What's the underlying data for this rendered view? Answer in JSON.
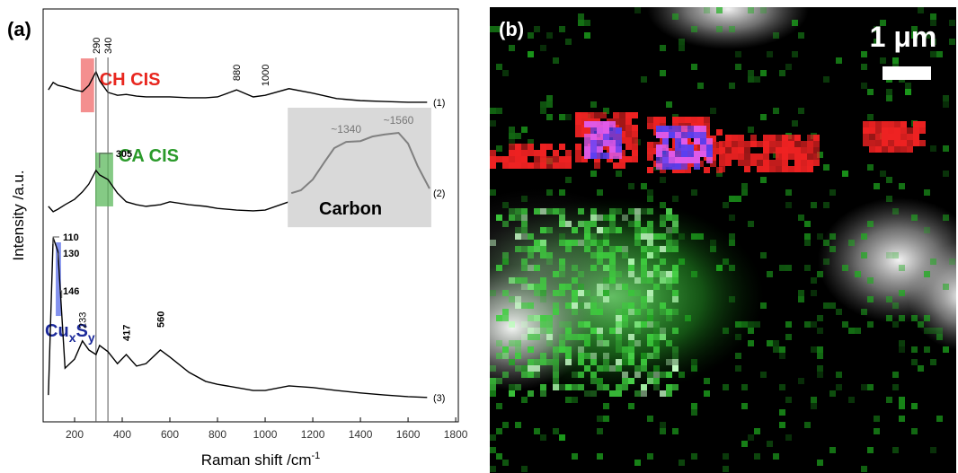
{
  "chart_data": {
    "type": "line",
    "panel_label": "(a)",
    "xlabel": [
      "Raman shift /cm",
      "-1"
    ],
    "ylabel": "Intensity /a.u.",
    "xlim": [
      68,
      1811
    ],
    "ylim": [
      0,
      100
    ],
    "xticks": [
      200,
      400,
      600,
      800,
      1000,
      1200,
      1400,
      1600,
      1800
    ],
    "x": [
      90,
      110,
      130,
      160,
      200,
      233,
      260,
      290,
      305,
      340,
      380,
      417,
      460,
      500,
      560,
      600,
      680,
      750,
      800,
      880,
      950,
      1000,
      1100,
      1200,
      1300,
      1400,
      1500,
      1600,
      1680
    ],
    "series": [
      {
        "name": "(1)",
        "color": "#000000",
        "values": [
          80.4,
          82.2,
          81.5,
          81.1,
          80.4,
          80.0,
          81.5,
          84.8,
          82.6,
          79.8,
          79.1,
          79.3,
          78.9,
          78.7,
          78.7,
          78.7,
          78.5,
          78.5,
          78.7,
          80.4,
          78.7,
          79.1,
          80.7,
          79.6,
          78.3,
          77.8,
          77.6,
          77.4,
          77.4
        ],
        "peaks": [
          290,
          340,
          880,
          1000
        ],
        "band": {
          "label": [
            "CH CIS"
          ],
          "range": [
            226,
            282
          ],
          "color": "#f06a6a",
          "text_color": "#e8271f"
        }
      },
      {
        "name": "(2)",
        "color": "#000000",
        "values": [
          52.2,
          50.9,
          51.5,
          52.6,
          53.9,
          55.7,
          57.6,
          60.9,
          59.8,
          58.7,
          55.4,
          53.3,
          52.6,
          52.2,
          52.6,
          53.3,
          52.6,
          52.2,
          51.7,
          51.3,
          51.1,
          51.3,
          53.3,
          null,
          null,
          null,
          null,
          null,
          null
        ],
        "peaks": [
          305
        ],
        "band": {
          "label": [
            "CA CIS"
          ],
          "range": [
            287,
            362
          ],
          "color": "#5cb85c",
          "text_color": "#2a9a2a"
        }
      },
      {
        "name": "(3)",
        "color": "#000000",
        "values": [
          6.5,
          44.6,
          41.3,
          13.0,
          15.2,
          19.6,
          17.4,
          16.3,
          18.5,
          17.0,
          14.1,
          16.3,
          13.5,
          14.1,
          17.4,
          15.7,
          12.0,
          9.8,
          9.1,
          8.3,
          7.6,
          7.6,
          8.7,
          8.3,
          7.6,
          7.0,
          6.5,
          6.1,
          5.9
        ],
        "peaks": [
          110,
          130,
          146,
          233,
          417,
          560
        ],
        "band": {
          "label": [
            "Cu",
            "x",
            "S",
            "y"
          ],
          "range": [
            121,
            143
          ],
          "color": "#5a6ee8",
          "text_color": "#1c2a9a"
        }
      }
    ],
    "inset": {
      "label": "Carbon",
      "color": "#808080",
      "x": [
        1110,
        1150,
        1200,
        1250,
        1290,
        1340,
        1400,
        1450,
        1500,
        1560,
        1600,
        1640,
        1690
      ],
      "values": [
        55.4,
        56.1,
        58.7,
        63.0,
        66.3,
        67.8,
        68.0,
        69.1,
        69.6,
        70.0,
        67.4,
        62.0,
        56.5
      ],
      "peak_labels": [
        {
          "value": 1340,
          "label": "~1340"
        },
        {
          "value": 1560,
          "label": "~1560"
        }
      ]
    }
  },
  "panel_b": {
    "label": "(b)",
    "scale_bar": "1 μm"
  }
}
